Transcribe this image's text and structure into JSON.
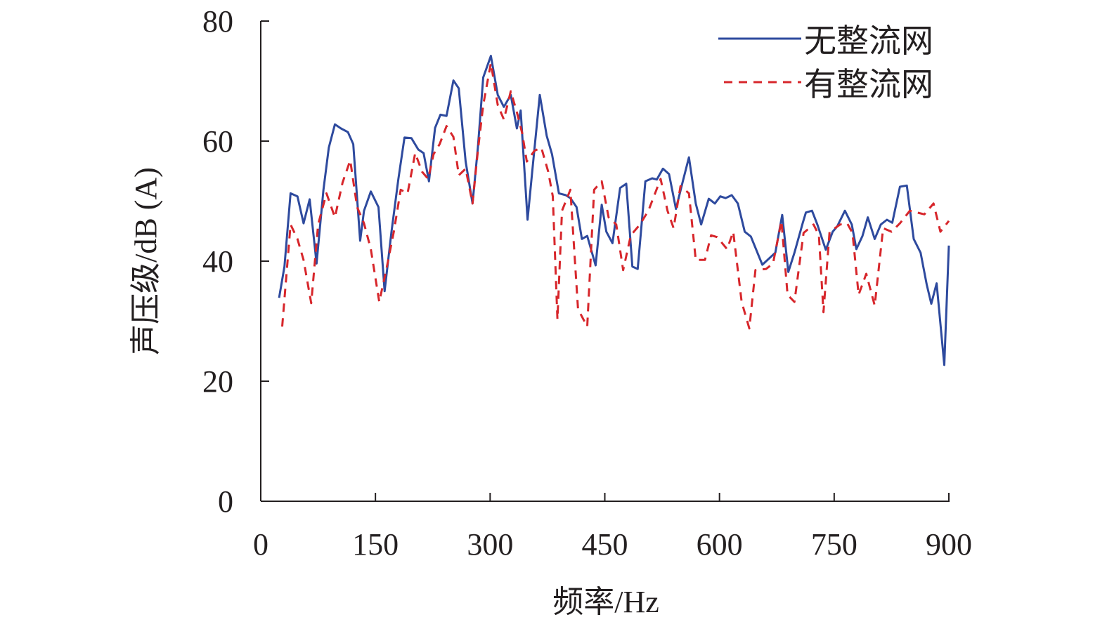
{
  "chart_data": {
    "type": "line",
    "title": "",
    "xlabel": "频率/Hz",
    "ylabel": "声压级/dB (A)",
    "xlim": [
      0,
      900
    ],
    "ylim": [
      0,
      80
    ],
    "xticks": [
      0,
      150,
      300,
      450,
      600,
      750,
      900
    ],
    "yticks": [
      0,
      20,
      40,
      60,
      80
    ],
    "grid": false,
    "legend_position": "top-right",
    "series": [
      {
        "name": "无整流网",
        "color": "#2e4a9e",
        "style": "solid",
        "points": [
          [
            24,
            33.9
          ],
          [
            31,
            39.1
          ],
          [
            39,
            51.3
          ],
          [
            48,
            50.8
          ],
          [
            56,
            46.3
          ],
          [
            64,
            50.3
          ],
          [
            73,
            39.6
          ],
          [
            82,
            51.9
          ],
          [
            89,
            58.9
          ],
          [
            97,
            62.8
          ],
          [
            105,
            62.1
          ],
          [
            114,
            61.5
          ],
          [
            121,
            59.5
          ],
          [
            130,
            43.4
          ],
          [
            135,
            48.4
          ],
          [
            144,
            51.6
          ],
          [
            154,
            49.0
          ],
          [
            162,
            35.0
          ],
          [
            171,
            44.9
          ],
          [
            180,
            53.7
          ],
          [
            188,
            60.6
          ],
          [
            197,
            60.5
          ],
          [
            206,
            58.6
          ],
          [
            213,
            58.0
          ],
          [
            220,
            53.3
          ],
          [
            228,
            62.2
          ],
          [
            235,
            64.4
          ],
          [
            243,
            64.2
          ],
          [
            252,
            70.1
          ],
          [
            259,
            68.8
          ],
          [
            268,
            56.6
          ],
          [
            277,
            49.6
          ],
          [
            284,
            58.9
          ],
          [
            291,
            70.6
          ],
          [
            301,
            74.2
          ],
          [
            310,
            67.7
          ],
          [
            318,
            65.7
          ],
          [
            327,
            67.7
          ],
          [
            335,
            62.1
          ],
          [
            340,
            65.1
          ],
          [
            349,
            46.9
          ],
          [
            355,
            54.9
          ],
          [
            365,
            67.7
          ],
          [
            374,
            60.9
          ],
          [
            381,
            57.8
          ],
          [
            390,
            51.3
          ],
          [
            399,
            51.0
          ],
          [
            405,
            50.5
          ],
          [
            413,
            49.0
          ],
          [
            420,
            43.7
          ],
          [
            427,
            44.2
          ],
          [
            438,
            39.3
          ],
          [
            446,
            49.4
          ],
          [
            452,
            44.9
          ],
          [
            460,
            43.0
          ],
          [
            470,
            52.2
          ],
          [
            478,
            52.9
          ],
          [
            486,
            39.1
          ],
          [
            493,
            38.7
          ],
          [
            503,
            53.3
          ],
          [
            512,
            53.8
          ],
          [
            518,
            53.6
          ],
          [
            526,
            55.4
          ],
          [
            534,
            54.5
          ],
          [
            543,
            48.7
          ],
          [
            552,
            53.3
          ],
          [
            560,
            57.3
          ],
          [
            569,
            49.6
          ],
          [
            576,
            46.1
          ],
          [
            586,
            50.4
          ],
          [
            594,
            49.6
          ],
          [
            601,
            50.8
          ],
          [
            608,
            50.5
          ],
          [
            616,
            51.0
          ],
          [
            624,
            49.6
          ],
          [
            633,
            44.9
          ],
          [
            641,
            44.1
          ],
          [
            656,
            39.4
          ],
          [
            673,
            41.4
          ],
          [
            682,
            47.7
          ],
          [
            690,
            38.2
          ],
          [
            698,
            41.4
          ],
          [
            709,
            46.4
          ],
          [
            713,
            48.1
          ],
          [
            721,
            48.4
          ],
          [
            728,
            46.1
          ],
          [
            739,
            41.9
          ],
          [
            748,
            44.9
          ],
          [
            754,
            45.8
          ],
          [
            764,
            48.4
          ],
          [
            773,
            46.1
          ],
          [
            779,
            42.0
          ],
          [
            787,
            44.2
          ],
          [
            794,
            47.3
          ],
          [
            803,
            43.7
          ],
          [
            811,
            46.1
          ],
          [
            819,
            46.9
          ],
          [
            826,
            46.4
          ],
          [
            836,
            52.4
          ],
          [
            845,
            52.6
          ],
          [
            854,
            43.7
          ],
          [
            863,
            41.4
          ],
          [
            871,
            36.1
          ],
          [
            877,
            32.9
          ],
          [
            884,
            36.3
          ],
          [
            894,
            22.7
          ],
          [
            900,
            42.6
          ]
        ]
      },
      {
        "name": "有整流网",
        "color": "#d7262b",
        "style": "dashed",
        "points": [
          [
            28,
            29.1
          ],
          [
            39,
            46.1
          ],
          [
            48,
            43.7
          ],
          [
            56,
            40.2
          ],
          [
            66,
            33.0
          ],
          [
            75,
            46.1
          ],
          [
            86,
            51.3
          ],
          [
            97,
            47.3
          ],
          [
            107,
            53.1
          ],
          [
            117,
            56.8
          ],
          [
            126,
            49.0
          ],
          [
            135,
            46.3
          ],
          [
            144,
            42.0
          ],
          [
            155,
            33.2
          ],
          [
            165,
            39.1
          ],
          [
            174,
            44.9
          ],
          [
            183,
            51.9
          ],
          [
            192,
            51.3
          ],
          [
            202,
            58.0
          ],
          [
            211,
            54.9
          ],
          [
            219,
            53.7
          ],
          [
            226,
            57.8
          ],
          [
            234,
            59.5
          ],
          [
            243,
            62.5
          ],
          [
            252,
            60.7
          ],
          [
            259,
            54.3
          ],
          [
            268,
            55.4
          ],
          [
            277,
            49.6
          ],
          [
            284,
            58.4
          ],
          [
            291,
            66.0
          ],
          [
            301,
            73.0
          ],
          [
            310,
            66.0
          ],
          [
            318,
            63.6
          ],
          [
            327,
            68.3
          ],
          [
            335,
            64.8
          ],
          [
            342,
            61.3
          ],
          [
            348,
            56.6
          ],
          [
            358,
            58.4
          ],
          [
            367,
            58.9
          ],
          [
            376,
            54.9
          ],
          [
            382,
            50.8
          ],
          [
            388,
            30.3
          ],
          [
            394,
            48.4
          ],
          [
            405,
            51.9
          ],
          [
            415,
            32.0
          ],
          [
            427,
            29.1
          ],
          [
            436,
            51.9
          ],
          [
            446,
            53.3
          ],
          [
            455,
            47.3
          ],
          [
            465,
            46.1
          ],
          [
            474,
            38.5
          ],
          [
            484,
            44.3
          ],
          [
            496,
            46.1
          ],
          [
            507,
            48.4
          ],
          [
            523,
            53.7
          ],
          [
            532,
            48.4
          ],
          [
            540,
            45.5
          ],
          [
            549,
            52.5
          ],
          [
            560,
            51.3
          ],
          [
            569,
            40.2
          ],
          [
            581,
            40.2
          ],
          [
            589,
            44.3
          ],
          [
            597,
            44.0
          ],
          [
            610,
            42.0
          ],
          [
            618,
            44.9
          ],
          [
            629,
            33.2
          ],
          [
            639,
            28.8
          ],
          [
            647,
            38.5
          ],
          [
            661,
            38.7
          ],
          [
            670,
            39.6
          ],
          [
            681,
            46.7
          ],
          [
            689,
            34.4
          ],
          [
            698,
            33.2
          ],
          [
            710,
            44.7
          ],
          [
            723,
            46.1
          ],
          [
            730,
            44.3
          ],
          [
            736,
            31.5
          ],
          [
            744,
            44.9
          ],
          [
            758,
            46.1
          ],
          [
            767,
            46.3
          ],
          [
            774,
            44.7
          ],
          [
            782,
            34.4
          ],
          [
            792,
            37.9
          ],
          [
            803,
            32.6
          ],
          [
            814,
            45.5
          ],
          [
            825,
            44.9
          ],
          [
            836,
            46.3
          ],
          [
            849,
            48.4
          ],
          [
            868,
            47.8
          ],
          [
            880,
            49.6
          ],
          [
            889,
            44.9
          ],
          [
            900,
            46.7
          ]
        ]
      }
    ]
  }
}
